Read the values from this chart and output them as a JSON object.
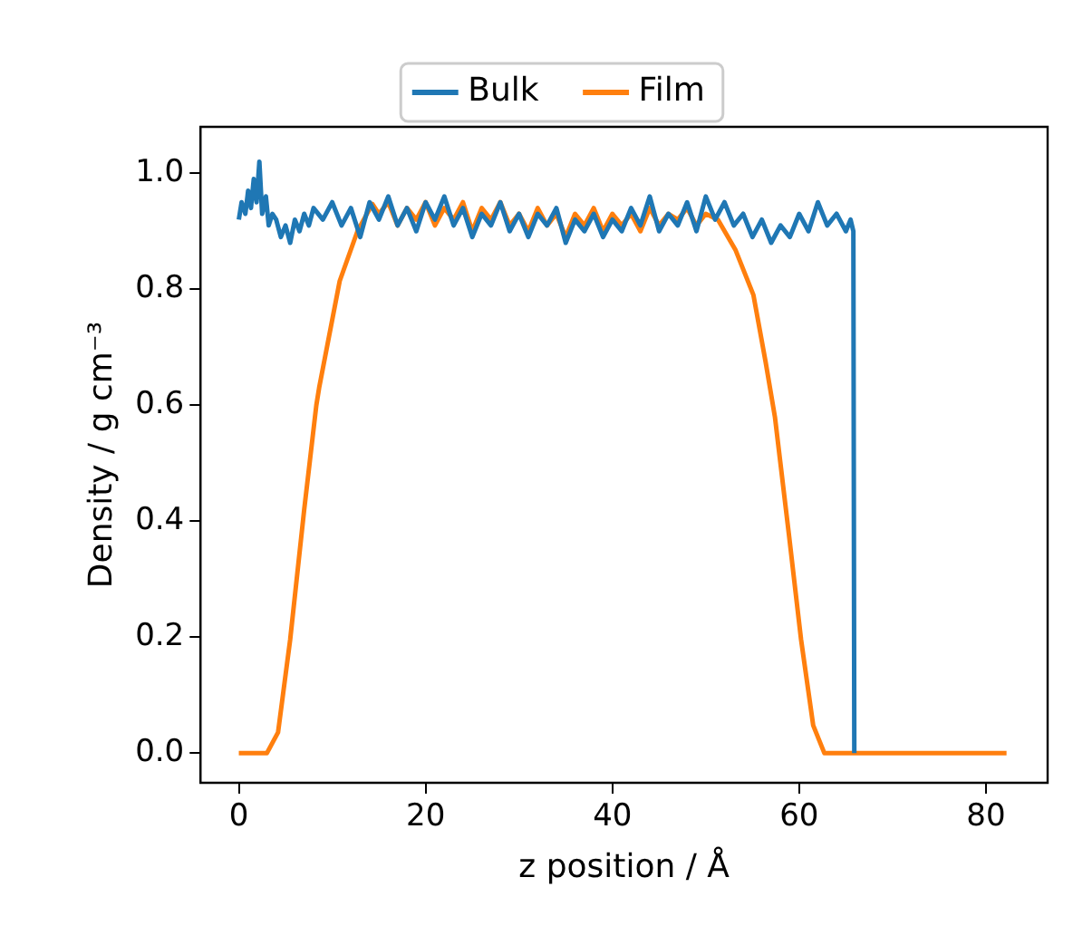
{
  "chart_data": {
    "type": "line",
    "xlabel": "z position / Å",
    "ylabel": "Density / g cm⁻³",
    "xlim": [
      -4.1,
      86.6
    ],
    "ylim": [
      -0.051,
      1.08
    ],
    "xticks": [
      0,
      20,
      40,
      60,
      80
    ],
    "yticks": [
      {
        "value": 0,
        "label": "0.0"
      },
      {
        "value": 0.2,
        "label": "0.2"
      },
      {
        "value": 0.4,
        "label": "0.4"
      },
      {
        "value": 0.6,
        "label": "0.6"
      },
      {
        "value": 0.8,
        "label": "0.8"
      },
      {
        "value": 1.0,
        "label": "1.0"
      }
    ],
    "grid": false,
    "legend": "top",
    "marker": "none",
    "line_style": "solid",
    "series": [
      {
        "name": "Bulk",
        "color": "#1f77b4",
        "x": [
          0,
          0.3,
          0.7,
          1.0,
          1.3,
          1.6,
          1.9,
          2.2,
          2.5,
          2.9,
          3.2,
          3.6,
          4.0,
          4.5,
          5.0,
          5.5,
          6.0,
          6.5,
          7.0,
          7.5,
          8,
          9,
          10,
          11,
          12,
          13,
          14,
          15,
          16,
          17,
          18,
          19,
          20,
          21,
          22,
          23,
          24,
          25,
          26,
          27,
          28,
          29,
          30,
          31,
          32,
          33,
          34,
          35,
          36,
          37,
          38,
          39,
          40,
          41,
          42,
          43,
          44,
          45,
          46,
          47,
          48,
          49,
          50,
          51,
          52,
          53,
          54,
          55,
          56,
          57,
          58,
          59,
          60,
          61,
          62,
          63,
          64,
          65,
          65.5,
          65.8,
          65.9
        ],
        "values": [
          0.92,
          0.95,
          0.93,
          0.97,
          0.94,
          0.99,
          0.95,
          1.02,
          0.93,
          0.96,
          0.91,
          0.93,
          0.92,
          0.89,
          0.91,
          0.88,
          0.92,
          0.9,
          0.93,
          0.91,
          0.94,
          0.92,
          0.95,
          0.91,
          0.94,
          0.89,
          0.95,
          0.92,
          0.96,
          0.91,
          0.94,
          0.9,
          0.95,
          0.92,
          0.96,
          0.91,
          0.94,
          0.89,
          0.93,
          0.91,
          0.95,
          0.9,
          0.93,
          0.89,
          0.93,
          0.91,
          0.94,
          0.88,
          0.92,
          0.9,
          0.93,
          0.89,
          0.92,
          0.9,
          0.94,
          0.91,
          0.96,
          0.9,
          0.93,
          0.91,
          0.95,
          0.9,
          0.96,
          0.92,
          0.95,
          0.91,
          0.93,
          0.89,
          0.92,
          0.88,
          0.91,
          0.89,
          0.93,
          0.9,
          0.95,
          0.91,
          0.93,
          0.9,
          0.92,
          0.9,
          0
        ]
      },
      {
        "name": "Film",
        "color": "#ff7f0e",
        "x": [
          0,
          3.0,
          4.2,
          5.5,
          7.0,
          8.3,
          8.6,
          10.8,
          12.7,
          14.3,
          15,
          16,
          17,
          18,
          19,
          20,
          21,
          22,
          23,
          24,
          25,
          26,
          27,
          28,
          29,
          30,
          31,
          32,
          33,
          34,
          35,
          36,
          37,
          38,
          39,
          40,
          41,
          42,
          43,
          44,
          45,
          46,
          47,
          48,
          49,
          50,
          51.3,
          53.2,
          55.1,
          56.4,
          57.4,
          58.9,
          60.2,
          61.5,
          62.7,
          82.2
        ],
        "values": [
          0,
          0,
          0.036,
          0.196,
          0.42,
          0.6,
          0.63,
          0.814,
          0.9,
          0.947,
          0.93,
          0.95,
          0.91,
          0.94,
          0.92,
          0.95,
          0.91,
          0.94,
          0.92,
          0.95,
          0.9,
          0.94,
          0.92,
          0.95,
          0.91,
          0.93,
          0.9,
          0.94,
          0.91,
          0.93,
          0.89,
          0.93,
          0.91,
          0.94,
          0.9,
          0.93,
          0.91,
          0.93,
          0.9,
          0.94,
          0.91,
          0.93,
          0.92,
          0.94,
          0.91,
          0.93,
          0.92,
          0.867,
          0.79,
          0.675,
          0.58,
          0.377,
          0.196,
          0.048,
          0,
          0
        ]
      }
    ]
  }
}
